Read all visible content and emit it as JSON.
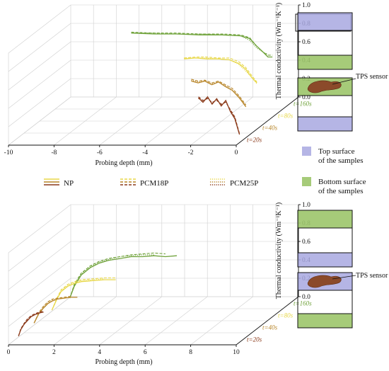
{
  "chart_data": [
    {
      "type": "line",
      "panel": "top",
      "xlabel": "Probing depth (mm)",
      "ylabel": "Thermal conductivity (Wm⁻¹K⁻¹)",
      "xlim": [
        -10,
        0
      ],
      "ylim": [
        0.0,
        1.0
      ],
      "xticks": [
        "-10",
        "-8",
        "-6",
        "-4",
        "-2",
        "0"
      ],
      "yticks": [
        "0.0",
        "0.2",
        "0.4",
        "0.6",
        "0.8",
        "1.0"
      ],
      "time_labels": [
        "t=160s",
        "t=80s",
        "t=40s",
        "t=20s"
      ],
      "series": [
        {
          "time": "t=160s",
          "material": "NP",
          "x": [
            -7.0,
            -6.0,
            -5.0,
            -4.0,
            -3.0,
            -2.2,
            -1.8,
            -1.5,
            -1.2,
            -1.0,
            -0.8
          ],
          "y": [
            0.76,
            0.75,
            0.75,
            0.74,
            0.74,
            0.73,
            0.7,
            0.62,
            0.55,
            0.5,
            0.5
          ]
        },
        {
          "time": "t=160s",
          "material": "PCM18P",
          "x": [
            -7.0,
            -6.0,
            -5.0,
            -4.0,
            -3.0,
            -2.2,
            -1.8,
            -1.5,
            -1.2,
            -1.0,
            -0.8
          ],
          "y": [
            0.77,
            0.76,
            0.76,
            0.75,
            0.75,
            0.74,
            0.71,
            0.62,
            0.55,
            0.52,
            0.52
          ]
        },
        {
          "time": "t=160s",
          "material": "PCM25P",
          "x": [
            -7.0,
            -6.0,
            -5.0,
            -4.0,
            -3.0,
            -2.2,
            -1.8,
            -1.5,
            -1.2,
            -1.0
          ],
          "y": [
            0.76,
            0.76,
            0.75,
            0.75,
            0.74,
            0.73,
            0.68,
            0.6,
            0.55,
            0.53
          ]
        },
        {
          "time": "t=80s",
          "material": "NP",
          "x": [
            -4.0,
            -3.5,
            -3.0,
            -2.5,
            -2.0,
            -1.6,
            -1.3,
            -1.0,
            -0.8
          ],
          "y": [
            0.61,
            0.62,
            0.61,
            0.61,
            0.6,
            0.56,
            0.5,
            0.4,
            0.35
          ]
        },
        {
          "time": "t=80s",
          "material": "PCM18P",
          "x": [
            -4.0,
            -3.5,
            -3.0,
            -2.5,
            -2.0,
            -1.6,
            -1.3,
            -1.0,
            -0.8
          ],
          "y": [
            0.62,
            0.63,
            0.63,
            0.62,
            0.62,
            0.58,
            0.52,
            0.42,
            0.36
          ]
        },
        {
          "time": "t=80s",
          "material": "PCM25P",
          "x": [
            -4.0,
            -3.5,
            -3.0,
            -2.5,
            -2.0,
            -1.6,
            -1.3,
            -1.0,
            -0.8
          ],
          "y": [
            0.62,
            0.62,
            0.62,
            0.61,
            0.6,
            0.55,
            0.48,
            0.4,
            0.34
          ]
        },
        {
          "time": "t=40s",
          "material": "NP",
          "x": [
            -3.0,
            -2.7,
            -2.4,
            -2.1,
            -1.8,
            -1.5,
            -1.2,
            -0.9,
            -0.6
          ],
          "y": [
            0.5,
            0.48,
            0.5,
            0.46,
            0.49,
            0.44,
            0.4,
            0.32,
            0.22
          ]
        },
        {
          "time": "t=40s",
          "material": "PCM18P",
          "x": [
            -3.0,
            -2.7,
            -2.4,
            -2.1,
            -1.8,
            -1.5,
            -1.2,
            -0.9,
            -0.6
          ],
          "y": [
            0.52,
            0.5,
            0.51,
            0.48,
            0.5,
            0.46,
            0.42,
            0.34,
            0.24
          ]
        },
        {
          "time": "t=40s",
          "material": "PCM25P",
          "x": [
            -3.0,
            -2.7,
            -2.4,
            -2.1,
            -1.8,
            -1.5,
            -1.2,
            -0.9,
            -0.6
          ],
          "y": [
            0.51,
            0.49,
            0.5,
            0.47,
            0.49,
            0.45,
            0.4,
            0.33,
            0.23
          ]
        },
        {
          "time": "t=20s",
          "material": "NP",
          "x": [
            -2.0,
            -1.8,
            -1.6,
            -1.4,
            -1.2,
            -1.0,
            -0.8,
            -0.6,
            -0.4,
            -0.2
          ],
          "y": [
            0.45,
            0.4,
            0.46,
            0.38,
            0.44,
            0.36,
            0.42,
            0.3,
            0.22,
            0.05
          ]
        },
        {
          "time": "t=20s",
          "material": "PCM18P",
          "x": [
            -2.0,
            -1.8,
            -1.6,
            -1.4,
            -1.2,
            -1.0,
            -0.8,
            -0.6,
            -0.4,
            -0.2
          ],
          "y": [
            0.46,
            0.42,
            0.44,
            0.4,
            0.42,
            0.38,
            0.4,
            0.32,
            0.24,
            0.06
          ]
        },
        {
          "time": "t=20s",
          "material": "PCM25P",
          "x": [
            -2.0,
            -1.8,
            -1.6,
            -1.4,
            -1.2,
            -1.0,
            -0.8,
            -0.6,
            -0.4,
            -0.2
          ],
          "y": [
            0.44,
            0.41,
            0.45,
            0.39,
            0.43,
            0.37,
            0.41,
            0.31,
            0.23,
            0.05
          ]
        }
      ]
    },
    {
      "type": "line",
      "panel": "bottom",
      "xlabel": "Probing depth (mm)",
      "ylabel": "Thermal conductivity (Wm⁻¹K⁻¹)",
      "xlim": [
        0,
        10
      ],
      "ylim": [
        0.0,
        1.0
      ],
      "xticks": [
        "0",
        "2",
        "4",
        "6",
        "8",
        "10"
      ],
      "yticks": [
        "0.0",
        "0.2",
        "0.4",
        "0.6",
        "0.8",
        "1.0"
      ],
      "time_labels": [
        "t=160s",
        "t=80s",
        "t=40s",
        "t=20s"
      ],
      "series": [
        {
          "time": "t=160s",
          "material": "NP",
          "x": [
            0.3,
            0.5,
            0.8,
            1.2,
            1.6,
            2.0,
            2.5,
            3.0,
            3.5,
            4.0,
            4.5,
            5.0
          ],
          "y": [
            0.05,
            0.18,
            0.3,
            0.38,
            0.43,
            0.46,
            0.48,
            0.5,
            0.5,
            0.51,
            0.5,
            0.51
          ]
        },
        {
          "time": "t=160s",
          "material": "PCM18P",
          "x": [
            0.3,
            0.5,
            0.8,
            1.2,
            1.6,
            2.0,
            2.5,
            3.0,
            3.5,
            4.0,
            4.5
          ],
          "y": [
            0.05,
            0.2,
            0.32,
            0.4,
            0.45,
            0.48,
            0.5,
            0.52,
            0.53,
            0.54,
            0.53
          ]
        },
        {
          "time": "t=160s",
          "material": "PCM25P",
          "x": [
            0.3,
            0.5,
            0.8,
            1.2,
            1.6,
            2.0,
            2.5,
            3.0,
            3.5,
            4.0
          ],
          "y": [
            0.05,
            0.19,
            0.31,
            0.39,
            0.44,
            0.47,
            0.5,
            0.51,
            0.52,
            0.52
          ]
        },
        {
          "time": "t=80s",
          "material": "NP",
          "x": [
            0.2,
            0.4,
            0.6,
            0.9,
            1.2,
            1.5,
            2.0,
            2.5,
            3.0
          ],
          "y": [
            0.05,
            0.16,
            0.25,
            0.31,
            0.34,
            0.36,
            0.37,
            0.38,
            0.38
          ]
        },
        {
          "time": "t=80s",
          "material": "PCM18P",
          "x": [
            0.2,
            0.4,
            0.6,
            0.9,
            1.2,
            1.5,
            2.0,
            2.5,
            3.0
          ],
          "y": [
            0.05,
            0.17,
            0.27,
            0.33,
            0.36,
            0.38,
            0.39,
            0.4,
            0.4
          ]
        },
        {
          "time": "t=80s",
          "material": "PCM25P",
          "x": [
            0.2,
            0.4,
            0.6,
            0.9,
            1.2,
            1.5,
            2.0,
            2.5
          ],
          "y": [
            0.05,
            0.16,
            0.26,
            0.32,
            0.35,
            0.37,
            0.38,
            0.39
          ]
        },
        {
          "time": "t=40s",
          "material": "NP",
          "x": [
            0.1,
            0.3,
            0.5,
            0.7,
            0.9,
            1.1,
            1.4,
            1.7,
            2.0
          ],
          "y": [
            0.04,
            0.14,
            0.2,
            0.25,
            0.28,
            0.3,
            0.31,
            0.32,
            0.32
          ]
        },
        {
          "time": "t=40s",
          "material": "PCM18P",
          "x": [
            0.1,
            0.3,
            0.5,
            0.7,
            0.9,
            1.1,
            1.4,
            1.7
          ],
          "y": [
            0.04,
            0.15,
            0.22,
            0.27,
            0.3,
            0.31,
            0.32,
            0.33
          ]
        },
        {
          "time": "t=40s",
          "material": "PCM25P",
          "x": [
            0.1,
            0.3,
            0.5,
            0.7,
            0.9,
            1.1,
            1.4
          ],
          "y": [
            0.04,
            0.14,
            0.21,
            0.26,
            0.29,
            0.3,
            0.31
          ]
        },
        {
          "time": "t=20s",
          "material": "NP",
          "x": [
            0.1,
            0.2,
            0.35,
            0.5,
            0.65,
            0.8,
            1.0,
            1.2
          ],
          "y": [
            0.03,
            0.1,
            0.16,
            0.2,
            0.24,
            0.26,
            0.28,
            0.29
          ]
        },
        {
          "time": "t=20s",
          "material": "PCM18P",
          "x": [
            0.1,
            0.2,
            0.35,
            0.5,
            0.65,
            0.8,
            1.0,
            1.2
          ],
          "y": [
            0.03,
            0.11,
            0.17,
            0.22,
            0.25,
            0.27,
            0.29,
            0.3
          ]
        },
        {
          "time": "t=20s",
          "material": "PCM25P",
          "x": [
            0.1,
            0.2,
            0.35,
            0.5,
            0.65,
            0.8,
            1.0
          ],
          "y": [
            0.03,
            0.1,
            0.16,
            0.21,
            0.24,
            0.26,
            0.28
          ]
        }
      ]
    }
  ],
  "legend": {
    "items": [
      {
        "label": "NP",
        "style": "solid"
      },
      {
        "label": "PCM18P",
        "style": "dashed"
      },
      {
        "label": "PCM25P",
        "style": "dotted"
      }
    ]
  },
  "colors": {
    "t160": "#6fa23a",
    "t80": "#e8d84a",
    "t40": "#b8862a",
    "t20": "#8b3a1a",
    "top_surface": "#a8a8e0",
    "bottom_surface": "#9cc56a",
    "sensor": "#8b4a2a"
  },
  "side": {
    "tps_top": "TPS sensor",
    "tps_bottom": "TPS sensor",
    "legend_top_line1": "Top surface",
    "legend_top_line2": "of the samples",
    "legend_bottom_line1": "Bottom surface",
    "legend_bottom_line2": "of the samples"
  }
}
